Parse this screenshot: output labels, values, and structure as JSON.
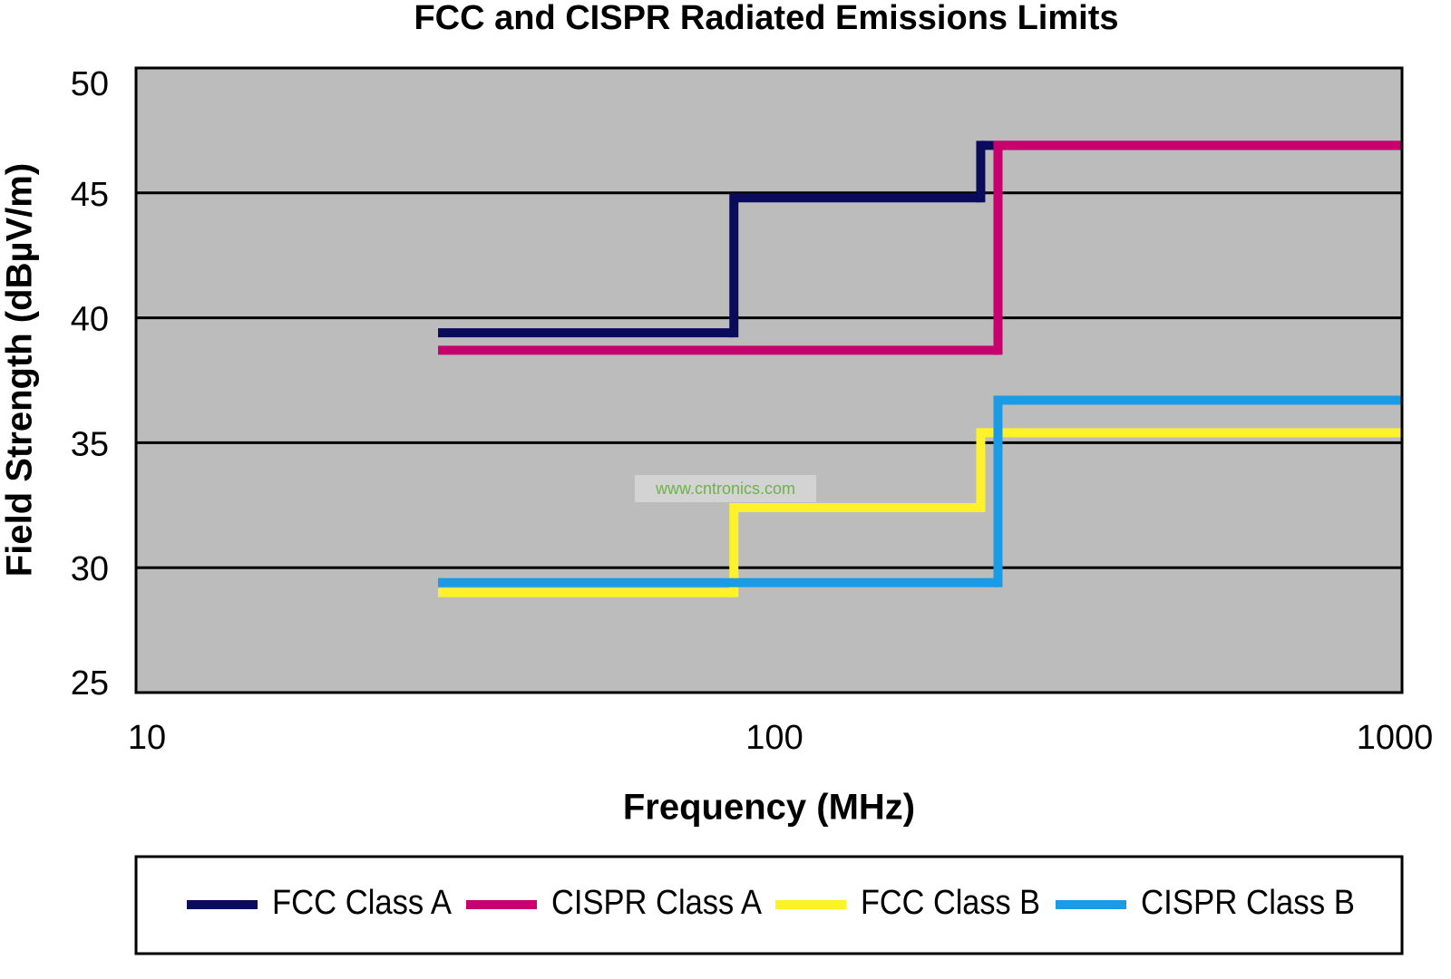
{
  "chart_data": {
    "type": "step-line",
    "title": "FCC and CISPR Radiated Emissions Limits",
    "x_label": "Frequency (MHz)",
    "y_label": "Field Strength (dBµV/m)",
    "annotation": "www.cntronics.com",
    "xscale": "log",
    "xlim": [
      10,
      1000
    ],
    "xticks": [
      10,
      100,
      1000
    ],
    "ylim": [
      25,
      50
    ],
    "yticks": [
      25,
      30,
      35,
      40,
      45,
      50
    ],
    "grid": true,
    "legend": "bottom",
    "background": "#bcbcbc",
    "series": [
      {
        "name": "FCC Class A",
        "color": "#0b0b5c",
        "x": [
          30,
          88,
          216,
          1000
        ],
        "values": [
          39.4,
          44.8,
          46.9,
          46.9
        ]
      },
      {
        "name": "CISPR Class A",
        "color": "#c8006e",
        "x": [
          30,
          230,
          1000
        ],
        "values": [
          38.7,
          46.9,
          46.9
        ]
      },
      {
        "name": "FCC Class B",
        "color": "#fff22a",
        "x": [
          30,
          88,
          216,
          1000
        ],
        "values": [
          29.0,
          32.4,
          35.4,
          35.4
        ]
      },
      {
        "name": "CISPR Class B",
        "color": "#1a9be6",
        "x": [
          30,
          230,
          1000
        ],
        "values": [
          29.4,
          36.7,
          36.7
        ]
      }
    ]
  }
}
